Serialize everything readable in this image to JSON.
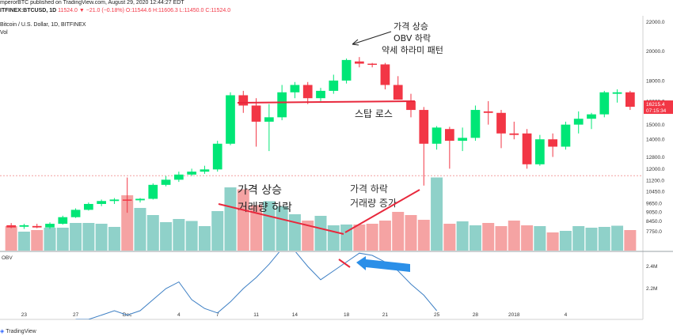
{
  "header": {
    "line1": "mperorBTC published on TradingView.com, August 29, 2020 12:44:27 EDT",
    "line2_symbol": "ITFINEX:BTCUSD, 1D",
    "line2_values": "11524.0 ▼ −21.0 (−0.18%) O:11544.6 H:11606.3 L:11450.0 C:11524.0",
    "line3": "Bitcoin / U.S. Dollar, 1D, BITFINEX",
    "line4": "Vol"
  },
  "footer": {
    "brand": "TradingView"
  },
  "colors": {
    "up": "#00e676",
    "down": "#f23645",
    "vol_up": "#8fd1c9",
    "vol_down": "#f5a3a3",
    "obv": "#3d7fc4",
    "annotation_red": "#e8283c",
    "arrow_blue": "#2b8fe8",
    "price_tag": "#f23645",
    "dotted": "#f4a0a0"
  },
  "annotations": {
    "top_note": [
      "가격 상승",
      "OBV 하락",
      "약세 하라미 패턴"
    ],
    "stop_loss": "스탑 로스",
    "vol_left": [
      "가격 상승",
      "거래량 하락"
    ],
    "vol_right": [
      "가격 하락",
      "거래량 증가"
    ]
  },
  "price_tags": {
    "last": "16215.4",
    "timer": "07:15:34"
  },
  "chart_data": {
    "type": "candlestick",
    "price_axis": {
      "ylim": [
        6800,
        22300
      ],
      "ticks": [
        "22000.0",
        "20000.0",
        "18000.0",
        "16600.0",
        "15000.0",
        "14000.0",
        "12800.0",
        "12000.0",
        "11200.0",
        "10450.0",
        "9650.0",
        "9050.0",
        "8450.0",
        "7750.0"
      ]
    },
    "x_ticks": [
      "23",
      "27",
      "Dec",
      "4",
      "7",
      "11",
      "14",
      "18",
      "21",
      "25",
      "28",
      "2018",
      "4"
    ],
    "candles": [
      {
        "o": 8150,
        "h": 8300,
        "l": 7950,
        "c": 8000
      },
      {
        "o": 8050,
        "h": 8250,
        "l": 7900,
        "c": 8150
      },
      {
        "o": 8100,
        "h": 8250,
        "l": 7950,
        "c": 8000
      },
      {
        "o": 8000,
        "h": 8350,
        "l": 7900,
        "c": 8250
      },
      {
        "o": 8250,
        "h": 8800,
        "l": 8200,
        "c": 8700
      },
      {
        "o": 8700,
        "h": 9300,
        "l": 8650,
        "c": 9200
      },
      {
        "o": 9200,
        "h": 9700,
        "l": 9150,
        "c": 9600
      },
      {
        "o": 9600,
        "h": 9900,
        "l": 9450,
        "c": 9800
      },
      {
        "o": 9800,
        "h": 10000,
        "l": 9600,
        "c": 9900
      },
      {
        "o": 9900,
        "h": 11400,
        "l": 9000,
        "c": 9850
      },
      {
        "o": 9850,
        "h": 10000,
        "l": 9700,
        "c": 9950
      },
      {
        "o": 9950,
        "h": 11000,
        "l": 9900,
        "c": 10900
      },
      {
        "o": 10900,
        "h": 11500,
        "l": 10800,
        "c": 11250
      },
      {
        "o": 11250,
        "h": 11800,
        "l": 11100,
        "c": 11600
      },
      {
        "o": 11600,
        "h": 12000,
        "l": 11500,
        "c": 11800
      },
      {
        "o": 11800,
        "h": 12200,
        "l": 11650,
        "c": 11950
      },
      {
        "o": 11950,
        "h": 13900,
        "l": 11800,
        "c": 13700
      },
      {
        "o": 13700,
        "h": 17200,
        "l": 13600,
        "c": 17000
      },
      {
        "o": 17000,
        "h": 17300,
        "l": 15800,
        "c": 16300
      },
      {
        "o": 16300,
        "h": 16800,
        "l": 13500,
        "c": 15200
      },
      {
        "o": 15200,
        "h": 16400,
        "l": 13200,
        "c": 15500
      },
      {
        "o": 15500,
        "h": 17700,
        "l": 15300,
        "c": 17200
      },
      {
        "o": 17200,
        "h": 17900,
        "l": 16800,
        "c": 17700
      },
      {
        "o": 17700,
        "h": 17900,
        "l": 16400,
        "c": 16800
      },
      {
        "o": 16800,
        "h": 17500,
        "l": 16600,
        "c": 17300
      },
      {
        "o": 17300,
        "h": 18400,
        "l": 17100,
        "c": 18000
      },
      {
        "o": 18000,
        "h": 19500,
        "l": 17800,
        "c": 19400
      },
      {
        "o": 19300,
        "h": 19600,
        "l": 18900,
        "c": 19150
      },
      {
        "o": 19150,
        "h": 19200,
        "l": 18900,
        "c": 19100
      },
      {
        "o": 19100,
        "h": 19200,
        "l": 17400,
        "c": 17700
      },
      {
        "o": 17700,
        "h": 18300,
        "l": 16700,
        "c": 16700
      },
      {
        "o": 16600,
        "h": 17100,
        "l": 15500,
        "c": 16000
      },
      {
        "o": 16000,
        "h": 16200,
        "l": 10850,
        "c": 13700
      },
      {
        "o": 13700,
        "h": 14900,
        "l": 13300,
        "c": 14800
      },
      {
        "o": 14700,
        "h": 14850,
        "l": 12000,
        "c": 13900
      },
      {
        "o": 13900,
        "h": 14800,
        "l": 13200,
        "c": 14100
      },
      {
        "o": 14100,
        "h": 16300,
        "l": 13900,
        "c": 16000
      },
      {
        "o": 15900,
        "h": 16600,
        "l": 15000,
        "c": 15800
      },
      {
        "o": 15800,
        "h": 16000,
        "l": 13400,
        "c": 14400
      },
      {
        "o": 14400,
        "h": 15200,
        "l": 14000,
        "c": 14300
      },
      {
        "o": 14400,
        "h": 14700,
        "l": 12000,
        "c": 12300
      },
      {
        "o": 12300,
        "h": 14300,
        "l": 12200,
        "c": 14000
      },
      {
        "o": 14000,
        "h": 14400,
        "l": 12800,
        "c": 13500
      },
      {
        "o": 13500,
        "h": 15200,
        "l": 13300,
        "c": 15000
      },
      {
        "o": 15000,
        "h": 15900,
        "l": 14400,
        "c": 15400
      },
      {
        "o": 15400,
        "h": 15800,
        "l": 14700,
        "c": 15700
      },
      {
        "o": 15700,
        "h": 17300,
        "l": 15500,
        "c": 17200
      },
      {
        "o": 17100,
        "h": 17400,
        "l": 16500,
        "c": 17200
      },
      {
        "o": 17200,
        "h": 17300,
        "l": 16000,
        "c": 16215
      }
    ],
    "volume": [
      62,
      48,
      52,
      58,
      58,
      70,
      70,
      68,
      60,
      140,
      108,
      90,
      72,
      80,
      75,
      62,
      100,
      160,
      155,
      115,
      125,
      112,
      92,
      76,
      88,
      64,
      66,
      66,
      68,
      76,
      98,
      90,
      78,
      185,
      68,
      74,
      64,
      70,
      62,
      76,
      64,
      62,
      46,
      50,
      62,
      58,
      60,
      63,
      52
    ],
    "obv": [
      null,
      null,
      null,
      null,
      null,
      null,
      null,
      null,
      null,
      null,
      null,
      null,
      null,
      null,
      null,
      null,
      null,
      null,
      null,
      null,
      null,
      null,
      null,
      null,
      null,
      null,
      null,
      null,
      null,
      null,
      null,
      null,
      null,
      null,
      null,
      null,
      null,
      null,
      null,
      null,
      null,
      null,
      null,
      null,
      null,
      null,
      null,
      null,
      null
    ],
    "obv_points": [
      [
        5,
        1.82
      ],
      [
        6,
        1.9
      ],
      [
        7,
        1.96
      ],
      [
        8,
        2.0
      ],
      [
        9,
        1.96
      ],
      [
        10,
        2.0
      ],
      [
        11,
        2.1
      ],
      [
        12,
        2.2
      ],
      [
        13,
        2.26
      ],
      [
        14,
        2.1
      ],
      [
        15,
        2.02
      ],
      [
        16,
        1.98
      ],
      [
        17,
        2.08
      ],
      [
        18,
        2.2
      ],
      [
        19,
        2.3
      ],
      [
        20,
        2.42
      ],
      [
        21,
        2.56
      ],
      [
        22,
        2.54
      ],
      [
        23,
        2.4
      ],
      [
        24,
        2.28
      ],
      [
        25,
        2.36
      ],
      [
        26,
        2.44
      ],
      [
        27,
        2.52
      ],
      [
        28,
        2.5
      ],
      [
        29,
        2.44
      ],
      [
        30,
        2.36
      ],
      [
        31,
        2.24
      ],
      [
        32,
        2.14
      ],
      [
        33,
        2.0
      ]
    ],
    "obv_axis": {
      "ticks": [
        "2.4M",
        "2.2M"
      ]
    }
  }
}
